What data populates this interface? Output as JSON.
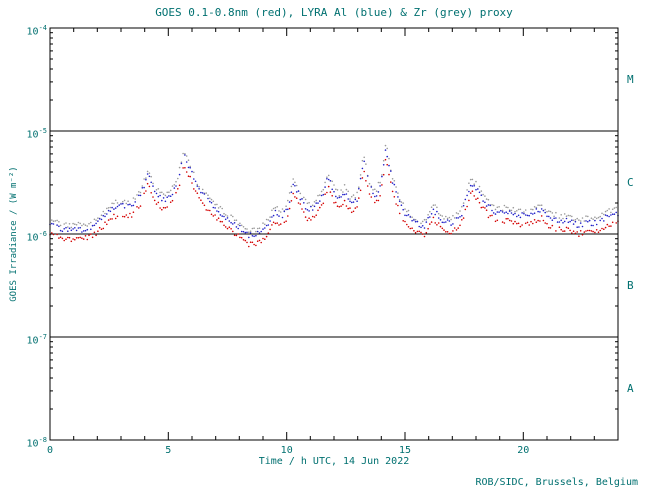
{
  "footer": {
    "credit": "ROB/SIDC, Brussels, Belgium"
  },
  "colors": {
    "text": "#007070",
    "axis": "#000000",
    "background": "#ffffff",
    "red": "#d40000",
    "blue": "#2020c8",
    "grey": "#9a9a9a"
  },
  "chart_data": {
    "type": "scatter",
    "title": "GOES 0.1-0.8nm (red), LYRA Al (blue) & Zr (grey) proxy",
    "xlabel": "Time / h UTC, 14 Jun 2022",
    "ylabel": "GOES Irradiance / (W m⁻²)",
    "xlim": [
      0,
      24
    ],
    "ylim": [
      1e-08,
      0.0001
    ],
    "yscale": "log",
    "grid": false,
    "legend_position": "none",
    "x_major_ticks": [
      0,
      5,
      10,
      15,
      20
    ],
    "x_minor_step": 1,
    "y_tick_exponents": [
      -4,
      -5,
      -6,
      -7,
      -8
    ],
    "hlines": [
      1e-05,
      1e-06,
      1e-07
    ],
    "flare_classes": [
      {
        "label": "M",
        "exp": -4.5
      },
      {
        "label": "C",
        "exp": -5.5
      },
      {
        "label": "B",
        "exp": -6.5
      },
      {
        "label": "A",
        "exp": -7.5
      }
    ],
    "x": [
      0.0,
      0.4,
      0.8,
      1.3,
      1.8,
      2.2,
      2.6,
      3.0,
      3.4,
      3.8,
      4.15,
      4.5,
      4.8,
      5.1,
      5.4,
      5.65,
      5.9,
      6.2,
      6.6,
      7.0,
      7.5,
      8.0,
      8.4,
      8.8,
      9.2,
      9.5,
      9.8,
      10.05,
      10.3,
      10.6,
      10.9,
      11.2,
      11.5,
      11.75,
      12.0,
      12.25,
      12.45,
      12.7,
      13.0,
      13.25,
      13.5,
      13.75,
      14.0,
      14.2,
      14.45,
      14.7,
      15.0,
      15.4,
      15.8,
      16.2,
      16.6,
      17.0,
      17.4,
      17.8,
      18.1,
      18.5,
      18.9,
      19.3,
      19.7,
      20.1,
      20.5,
      20.8,
      21.1,
      21.5,
      21.9,
      22.3,
      22.7,
      23.1,
      23.5,
      23.95
    ],
    "series": [
      {
        "name": "GOES 0.1-0.8nm",
        "color_key": "red",
        "values": [
          1e-06,
          9.3e-07,
          9e-07,
          9e-07,
          9.5e-07,
          1.15e-06,
          1.45e-06,
          1.55e-06,
          1.5e-06,
          1.9e-06,
          3.1e-06,
          2e-06,
          1.75e-06,
          1.95e-06,
          2.6e-06,
          4.8e-06,
          3.6e-06,
          2.4e-06,
          1.8e-06,
          1.45e-06,
          1.15e-06,
          9.5e-07,
          8e-07,
          8.2e-07,
          1e-06,
          1.35e-06,
          1.2e-06,
          1.5e-06,
          2.55e-06,
          1.8e-06,
          1.4e-06,
          1.5e-06,
          1.9e-06,
          2.9e-06,
          2.1e-06,
          1.8e-06,
          2.1e-06,
          1.65e-06,
          1.8e-06,
          4.4e-06,
          2.4e-06,
          1.9e-06,
          2.6e-06,
          5.6e-06,
          2.8e-06,
          1.8e-06,
          1.3e-06,
          1.05e-06,
          9.7e-07,
          1.4e-06,
          1.1e-06,
          1.05e-06,
          1.3e-06,
          2.6e-06,
          2.1e-06,
          1.55e-06,
          1.3e-06,
          1.35e-06,
          1.25e-06,
          1.25e-06,
          1.35e-06,
          1.45e-06,
          1.2e-06,
          1.1e-06,
          1.1e-06,
          1e-06,
          1.05e-06,
          1.05e-06,
          1.2e-06,
          1.3e-06
        ]
      },
      {
        "name": "LYRA Al proxy",
        "color_key": "blue",
        "values": [
          1.22e-06,
          1.13e-06,
          1.1e-06,
          1.1e-06,
          1.16e-06,
          1.4e-06,
          1.77e-06,
          1.89e-06,
          1.83e-06,
          2.32e-06,
          3.78e-06,
          2.44e-06,
          2.14e-06,
          2.38e-06,
          3.17e-06,
          5.86e-06,
          4.39e-06,
          2.93e-06,
          2.2e-06,
          1.77e-06,
          1.4e-06,
          1.16e-06,
          9.8e-07,
          1e-06,
          1.22e-06,
          1.65e-06,
          1.46e-06,
          1.83e-06,
          3.11e-06,
          2.2e-06,
          1.71e-06,
          1.83e-06,
          2.32e-06,
          3.54e-06,
          2.56e-06,
          2.2e-06,
          2.56e-06,
          2.01e-06,
          2.2e-06,
          5.37e-06,
          2.93e-06,
          2.32e-06,
          3.17e-06,
          6.83e-06,
          3.42e-06,
          2.2e-06,
          1.59e-06,
          1.28e-06,
          1.18e-06,
          1.71e-06,
          1.34e-06,
          1.28e-06,
          1.59e-06,
          3.17e-06,
          2.56e-06,
          1.89e-06,
          1.59e-06,
          1.65e-06,
          1.53e-06,
          1.53e-06,
          1.65e-06,
          1.77e-06,
          1.46e-06,
          1.34e-06,
          1.34e-06,
          1.22e-06,
          1.28e-06,
          1.28e-06,
          1.46e-06,
          1.59e-06
        ]
      },
      {
        "name": "LYRA Zr proxy",
        "color_key": "grey",
        "values": [
          1.35e-06,
          1.26e-06,
          1.22e-06,
          1.22e-06,
          1.28e-06,
          1.55e-06,
          1.96e-06,
          2.09e-06,
          2.03e-06,
          2.57e-06,
          4.19e-06,
          2.7e-06,
          2.36e-06,
          2.63e-06,
          3.51e-06,
          6.48e-06,
          4.86e-06,
          3.24e-06,
          2.43e-06,
          1.96e-06,
          1.55e-06,
          1.28e-06,
          1.08e-06,
          1.11e-06,
          1.35e-06,
          1.82e-06,
          1.62e-06,
          2.03e-06,
          3.44e-06,
          2.43e-06,
          1.89e-06,
          2.03e-06,
          2.57e-06,
          3.92e-06,
          2.84e-06,
          2.43e-06,
          2.84e-06,
          2.23e-06,
          2.43e-06,
          5.94e-06,
          3.24e-06,
          2.57e-06,
          3.51e-06,
          7.56e-06,
          3.78e-06,
          2.43e-06,
          1.76e-06,
          1.42e-06,
          1.31e-06,
          1.89e-06,
          1.49e-06,
          1.42e-06,
          1.76e-06,
          3.51e-06,
          2.84e-06,
          2.09e-06,
          1.76e-06,
          1.82e-06,
          1.69e-06,
          1.69e-06,
          1.82e-06,
          1.96e-06,
          1.62e-06,
          1.49e-06,
          1.49e-06,
          1.35e-06,
          1.42e-06,
          1.42e-06,
          1.62e-06,
          1.76e-06
        ]
      }
    ]
  }
}
